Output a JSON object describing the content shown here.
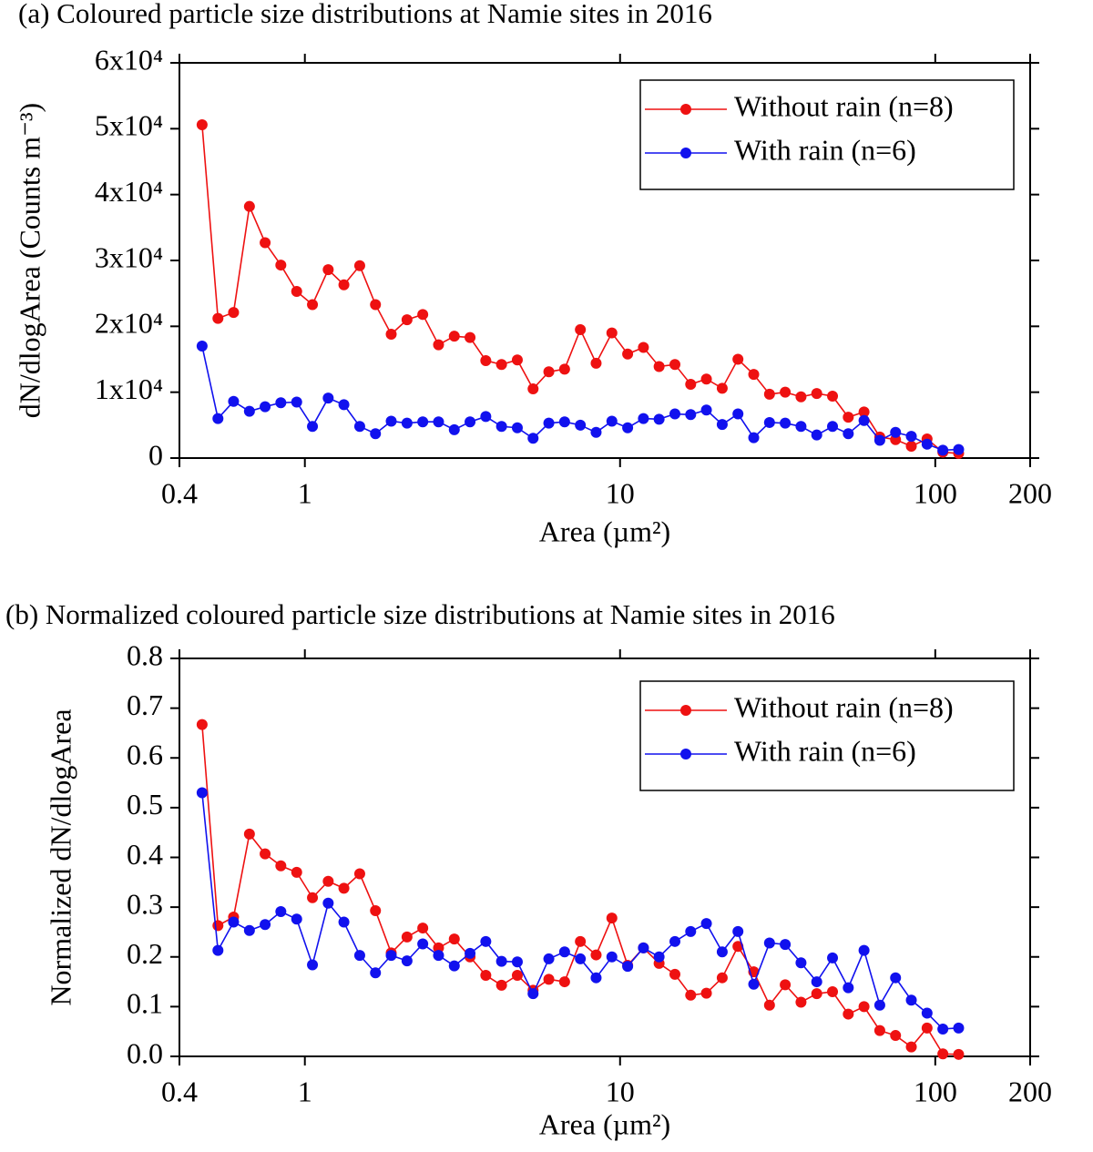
{
  "chart_data": [
    {
      "type": "line",
      "title": "(a) Coloured particle size distributions at Namie sites in 2016",
      "xlabel": "Area (µm²)",
      "ylabel": "dN/dlogArea (Counts m⁻³)",
      "xscale": "log",
      "xlim": [
        0.4,
        200
      ],
      "xticks": [
        0.4,
        1,
        10,
        100,
        200
      ],
      "ylim": [
        0,
        60000
      ],
      "yticks": [
        0,
        {
          "value": 10000,
          "label": "1x10⁴"
        },
        {
          "value": 20000,
          "label": "2x10⁴"
        },
        {
          "value": 30000,
          "label": "3x10⁴"
        },
        {
          "value": 40000,
          "label": "4x10⁴"
        },
        {
          "value": 50000,
          "label": "5x10⁴"
        },
        {
          "value": 60000,
          "label": "6x10⁴"
        }
      ],
      "legend": "top right",
      "x": [
        0.472,
        0.53,
        0.594,
        0.667,
        0.748,
        0.839,
        0.942,
        1.057,
        1.186,
        1.33,
        1.493,
        1.675,
        1.879,
        2.109,
        2.366,
        2.655,
        2.979,
        3.342,
        3.75,
        4.207,
        4.721,
        5.297,
        5.943,
        6.668,
        7.482,
        8.395,
        9.419,
        10.57,
        11.86,
        13.3,
        14.93,
        16.75,
        18.79,
        21.09,
        23.66,
        26.55,
        29.79,
        33.42,
        37.5,
        42.07,
        47.21,
        52.97,
        59.43,
        66.68,
        74.82,
        83.95,
        94.19,
        105.7,
        118.6
      ],
      "series": [
        {
          "name": "Without rain (n=8)",
          "color": "#ee1111",
          "values": [
            50600,
            21200,
            22100,
            38200,
            32700,
            29300,
            25300,
            23300,
            28600,
            26300,
            29200,
            23300,
            18800,
            21000,
            21800,
            17200,
            18500,
            18300,
            14800,
            14200,
            14900,
            10500,
            13100,
            13500,
            19500,
            14400,
            19000,
            15800,
            16800,
            13900,
            14200,
            11200,
            12000,
            10600,
            15000,
            12700,
            9700,
            10000,
            9300,
            9800,
            9400,
            6200,
            7000,
            3200,
            2800,
            1800,
            2900,
            900,
            700
          ]
        },
        {
          "name": "With rain (n=6)",
          "color": "#1111ee",
          "values": [
            17000,
            6000,
            8600,
            7100,
            7800,
            8400,
            8500,
            4800,
            9100,
            8100,
            4800,
            3700,
            5600,
            5300,
            5500,
            5500,
            4300,
            5500,
            6300,
            4800,
            4600,
            3000,
            5300,
            5500,
            5000,
            3900,
            5600,
            4600,
            6000,
            5900,
            6700,
            6600,
            7300,
            5100,
            6700,
            3100,
            5400,
            5300,
            4800,
            3500,
            4800,
            3700,
            5700,
            2700,
            3900,
            3300,
            2100,
            1200,
            1300
          ]
        }
      ]
    },
    {
      "type": "line",
      "title": "(b) Normalized coloured particle size distributions at Namie sites in 2016",
      "xlabel": "Area (µm²)",
      "ylabel": "Normalized dN/dlogArea",
      "xscale": "log",
      "xlim": [
        0.4,
        200
      ],
      "xticks": [
        0.4,
        1,
        10,
        100,
        200
      ],
      "ylim": [
        0,
        0.8
      ],
      "yticks": [
        {
          "value": 0,
          "label": "0.0"
        },
        {
          "value": 0.1,
          "label": "0.1"
        },
        {
          "value": 0.2,
          "label": "0.2"
        },
        {
          "value": 0.3,
          "label": "0.3"
        },
        {
          "value": 0.4,
          "label": "0.4"
        },
        {
          "value": 0.5,
          "label": "0.5"
        },
        {
          "value": 0.6,
          "label": "0.6"
        },
        {
          "value": 0.7,
          "label": "0.7"
        },
        {
          "value": 0.8,
          "label": "0.8"
        }
      ],
      "legend": "top right",
      "x": [
        0.472,
        0.53,
        0.594,
        0.667,
        0.748,
        0.839,
        0.942,
        1.057,
        1.186,
        1.33,
        1.493,
        1.675,
        1.879,
        2.109,
        2.366,
        2.655,
        2.979,
        3.342,
        3.75,
        4.207,
        4.721,
        5.297,
        5.943,
        6.668,
        7.482,
        8.395,
        9.419,
        10.57,
        11.86,
        13.3,
        14.93,
        16.75,
        18.79,
        21.09,
        23.66,
        26.55,
        29.79,
        33.42,
        37.5,
        42.07,
        47.21,
        52.97,
        59.43,
        66.68,
        74.82,
        83.95,
        94.19,
        105.7,
        118.6
      ],
      "series": [
        {
          "name": "Without rain (n=8)",
          "color": "#ee1111",
          "values": [
            0.667,
            0.263,
            0.28,
            0.447,
            0.407,
            0.383,
            0.37,
            0.319,
            0.352,
            0.338,
            0.367,
            0.293,
            0.208,
            0.24,
            0.258,
            0.218,
            0.236,
            0.2,
            0.163,
            0.143,
            0.163,
            0.133,
            0.155,
            0.15,
            0.231,
            0.204,
            0.278,
            0.183,
            0.218,
            0.187,
            0.165,
            0.123,
            0.127,
            0.158,
            0.221,
            0.17,
            0.103,
            0.144,
            0.109,
            0.126,
            0.13,
            0.085,
            0.1,
            0.052,
            0.042,
            0.019,
            0.057,
            0.005,
            0.004
          ]
        },
        {
          "name": "With rain (n=6)",
          "color": "#1111ee",
          "values": [
            0.53,
            0.213,
            0.27,
            0.253,
            0.265,
            0.291,
            0.276,
            0.184,
            0.308,
            0.27,
            0.203,
            0.168,
            0.203,
            0.192,
            0.226,
            0.203,
            0.182,
            0.207,
            0.231,
            0.191,
            0.19,
            0.126,
            0.196,
            0.21,
            0.196,
            0.158,
            0.2,
            0.181,
            0.218,
            0.2,
            0.231,
            0.251,
            0.267,
            0.21,
            0.251,
            0.145,
            0.228,
            0.225,
            0.188,
            0.15,
            0.198,
            0.138,
            0.213,
            0.103,
            0.158,
            0.113,
            0.087,
            0.055,
            0.057
          ]
        }
      ]
    }
  ]
}
